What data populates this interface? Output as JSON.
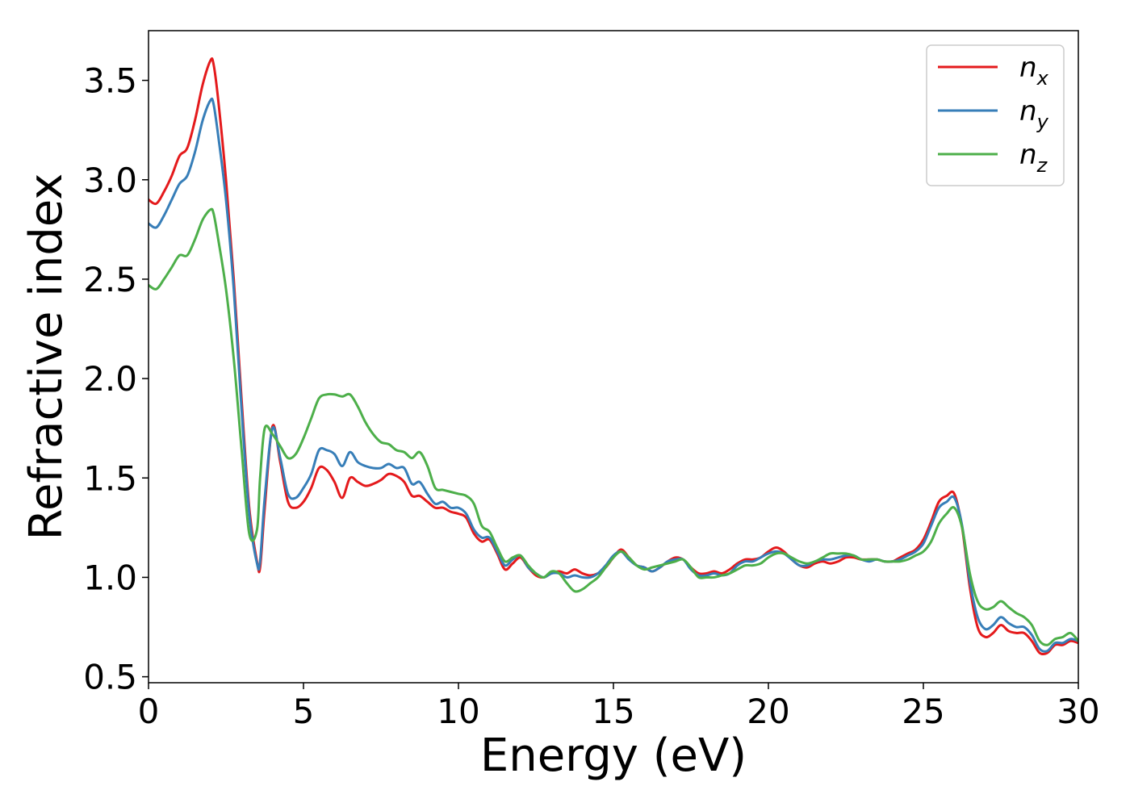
{
  "chart_data": {
    "type": "line",
    "title": "",
    "xlabel": "Energy (eV)",
    "ylabel": "Refractive index",
    "xlim": [
      0,
      30
    ],
    "ylim": [
      0.47,
      3.75
    ],
    "xticks": [
      0,
      5,
      10,
      15,
      20,
      25,
      30
    ],
    "xtick_labels": [
      "0",
      "5",
      "10",
      "15",
      "20",
      "25",
      "30"
    ],
    "yticks": [
      0.5,
      1.0,
      1.5,
      2.0,
      2.5,
      3.0,
      3.5
    ],
    "ytick_labels": [
      "0.5",
      "1.0",
      "1.5",
      "2.0",
      "2.5",
      "3.0",
      "3.5"
    ],
    "grid": false,
    "legend_position": "top-right",
    "x": [
      0,
      0.25,
      0.5,
      0.75,
      1.0,
      1.25,
      1.5,
      1.75,
      2.0,
      2.1,
      2.25,
      2.5,
      2.75,
      3.0,
      3.25,
      3.5,
      3.6,
      3.75,
      4.0,
      4.25,
      4.5,
      4.75,
      5.0,
      5.25,
      5.5,
      5.75,
      6.0,
      6.25,
      6.5,
      6.75,
      7.0,
      7.25,
      7.5,
      7.75,
      8.0,
      8.25,
      8.5,
      8.75,
      9.0,
      9.25,
      9.5,
      9.75,
      10.0,
      10.25,
      10.5,
      10.75,
      11.0,
      11.25,
      11.5,
      11.75,
      12.0,
      12.25,
      12.5,
      12.75,
      13.0,
      13.25,
      13.5,
      13.75,
      14.0,
      14.25,
      14.5,
      14.75,
      15.0,
      15.25,
      15.5,
      15.75,
      16.0,
      16.25,
      16.5,
      16.75,
      17.0,
      17.25,
      17.5,
      17.75,
      18.0,
      18.25,
      18.5,
      18.75,
      19.0,
      19.25,
      19.5,
      19.75,
      20.0,
      20.25,
      20.5,
      20.75,
      21.0,
      21.25,
      21.5,
      21.75,
      22.0,
      22.25,
      22.5,
      22.75,
      23.0,
      23.25,
      23.5,
      23.75,
      24.0,
      24.25,
      24.5,
      24.75,
      25.0,
      25.25,
      25.5,
      25.75,
      26.0,
      26.25,
      26.5,
      26.75,
      27.0,
      27.25,
      27.5,
      27.75,
      28.0,
      28.25,
      28.5,
      28.75,
      29.0,
      29.25,
      29.5,
      29.75,
      30.0
    ],
    "series": [
      {
        "name": "n",
        "subscript": "x",
        "color": "#e41a1c",
        "values": [
          2.9,
          2.88,
          2.94,
          3.02,
          3.12,
          3.16,
          3.3,
          3.48,
          3.6,
          3.58,
          3.4,
          3.0,
          2.5,
          1.9,
          1.35,
          1.08,
          1.05,
          1.35,
          1.76,
          1.58,
          1.38,
          1.35,
          1.38,
          1.45,
          1.55,
          1.54,
          1.48,
          1.4,
          1.5,
          1.48,
          1.46,
          1.47,
          1.49,
          1.52,
          1.51,
          1.48,
          1.41,
          1.41,
          1.38,
          1.35,
          1.35,
          1.33,
          1.32,
          1.3,
          1.22,
          1.18,
          1.19,
          1.12,
          1.04,
          1.07,
          1.1,
          1.05,
          1.01,
          1.0,
          1.02,
          1.03,
          1.02,
          1.04,
          1.02,
          1.01,
          1.02,
          1.05,
          1.1,
          1.14,
          1.1,
          1.06,
          1.05,
          1.03,
          1.05,
          1.08,
          1.1,
          1.09,
          1.05,
          1.02,
          1.02,
          1.03,
          1.02,
          1.04,
          1.07,
          1.09,
          1.09,
          1.1,
          1.13,
          1.15,
          1.13,
          1.09,
          1.06,
          1.05,
          1.07,
          1.08,
          1.07,
          1.08,
          1.1,
          1.1,
          1.09,
          1.09,
          1.09,
          1.08,
          1.08,
          1.1,
          1.12,
          1.14,
          1.19,
          1.28,
          1.38,
          1.41,
          1.42,
          1.25,
          0.95,
          0.75,
          0.7,
          0.72,
          0.76,
          0.73,
          0.72,
          0.72,
          0.68,
          0.62,
          0.62,
          0.66,
          0.66,
          0.68,
          0.67
        ]
      },
      {
        "name": "n",
        "subscript": "y",
        "color": "#377eb8",
        "values": [
          2.78,
          2.76,
          2.82,
          2.9,
          2.98,
          3.02,
          3.14,
          3.3,
          3.4,
          3.38,
          3.22,
          2.9,
          2.45,
          1.85,
          1.32,
          1.07,
          1.08,
          1.4,
          1.75,
          1.6,
          1.42,
          1.4,
          1.45,
          1.52,
          1.64,
          1.64,
          1.62,
          1.56,
          1.63,
          1.58,
          1.56,
          1.55,
          1.55,
          1.57,
          1.55,
          1.55,
          1.47,
          1.48,
          1.42,
          1.37,
          1.38,
          1.35,
          1.35,
          1.32,
          1.24,
          1.2,
          1.2,
          1.13,
          1.06,
          1.09,
          1.11,
          1.05,
          1.02,
          1.0,
          1.02,
          1.02,
          1.0,
          1.01,
          1.0,
          1.0,
          1.02,
          1.06,
          1.11,
          1.13,
          1.09,
          1.06,
          1.05,
          1.03,
          1.05,
          1.08,
          1.09,
          1.09,
          1.04,
          1.01,
          1.01,
          1.02,
          1.01,
          1.02,
          1.06,
          1.08,
          1.08,
          1.1,
          1.12,
          1.13,
          1.12,
          1.09,
          1.06,
          1.06,
          1.08,
          1.09,
          1.09,
          1.1,
          1.11,
          1.11,
          1.09,
          1.08,
          1.09,
          1.08,
          1.08,
          1.09,
          1.11,
          1.13,
          1.17,
          1.26,
          1.35,
          1.38,
          1.4,
          1.26,
          0.98,
          0.8,
          0.74,
          0.76,
          0.8,
          0.77,
          0.75,
          0.75,
          0.71,
          0.64,
          0.63,
          0.67,
          0.67,
          0.69,
          0.68
        ]
      },
      {
        "name": "n",
        "subscript": "z",
        "color": "#4daf4a",
        "values": [
          2.47,
          2.45,
          2.5,
          2.56,
          2.62,
          2.62,
          2.7,
          2.8,
          2.85,
          2.83,
          2.7,
          2.45,
          2.1,
          1.65,
          1.22,
          1.24,
          1.5,
          1.75,
          1.72,
          1.66,
          1.6,
          1.62,
          1.7,
          1.8,
          1.9,
          1.92,
          1.92,
          1.91,
          1.92,
          1.86,
          1.78,
          1.72,
          1.68,
          1.67,
          1.64,
          1.63,
          1.6,
          1.63,
          1.56,
          1.45,
          1.44,
          1.43,
          1.42,
          1.41,
          1.37,
          1.26,
          1.23,
          1.15,
          1.08,
          1.1,
          1.11,
          1.06,
          1.02,
          1.0,
          1.03,
          1.02,
          0.97,
          0.93,
          0.94,
          0.97,
          1.0,
          1.05,
          1.1,
          1.13,
          1.1,
          1.06,
          1.04,
          1.05,
          1.06,
          1.07,
          1.08,
          1.09,
          1.05,
          1.0,
          1.0,
          1.0,
          1.01,
          1.02,
          1.04,
          1.06,
          1.06,
          1.07,
          1.1,
          1.12,
          1.12,
          1.1,
          1.08,
          1.07,
          1.08,
          1.1,
          1.12,
          1.12,
          1.12,
          1.11,
          1.09,
          1.09,
          1.09,
          1.08,
          1.08,
          1.08,
          1.09,
          1.11,
          1.13,
          1.18,
          1.27,
          1.32,
          1.35,
          1.25,
          1.02,
          0.88,
          0.84,
          0.85,
          0.88,
          0.85,
          0.82,
          0.8,
          0.76,
          0.68,
          0.66,
          0.69,
          0.7,
          0.72,
          0.68
        ]
      }
    ]
  }
}
